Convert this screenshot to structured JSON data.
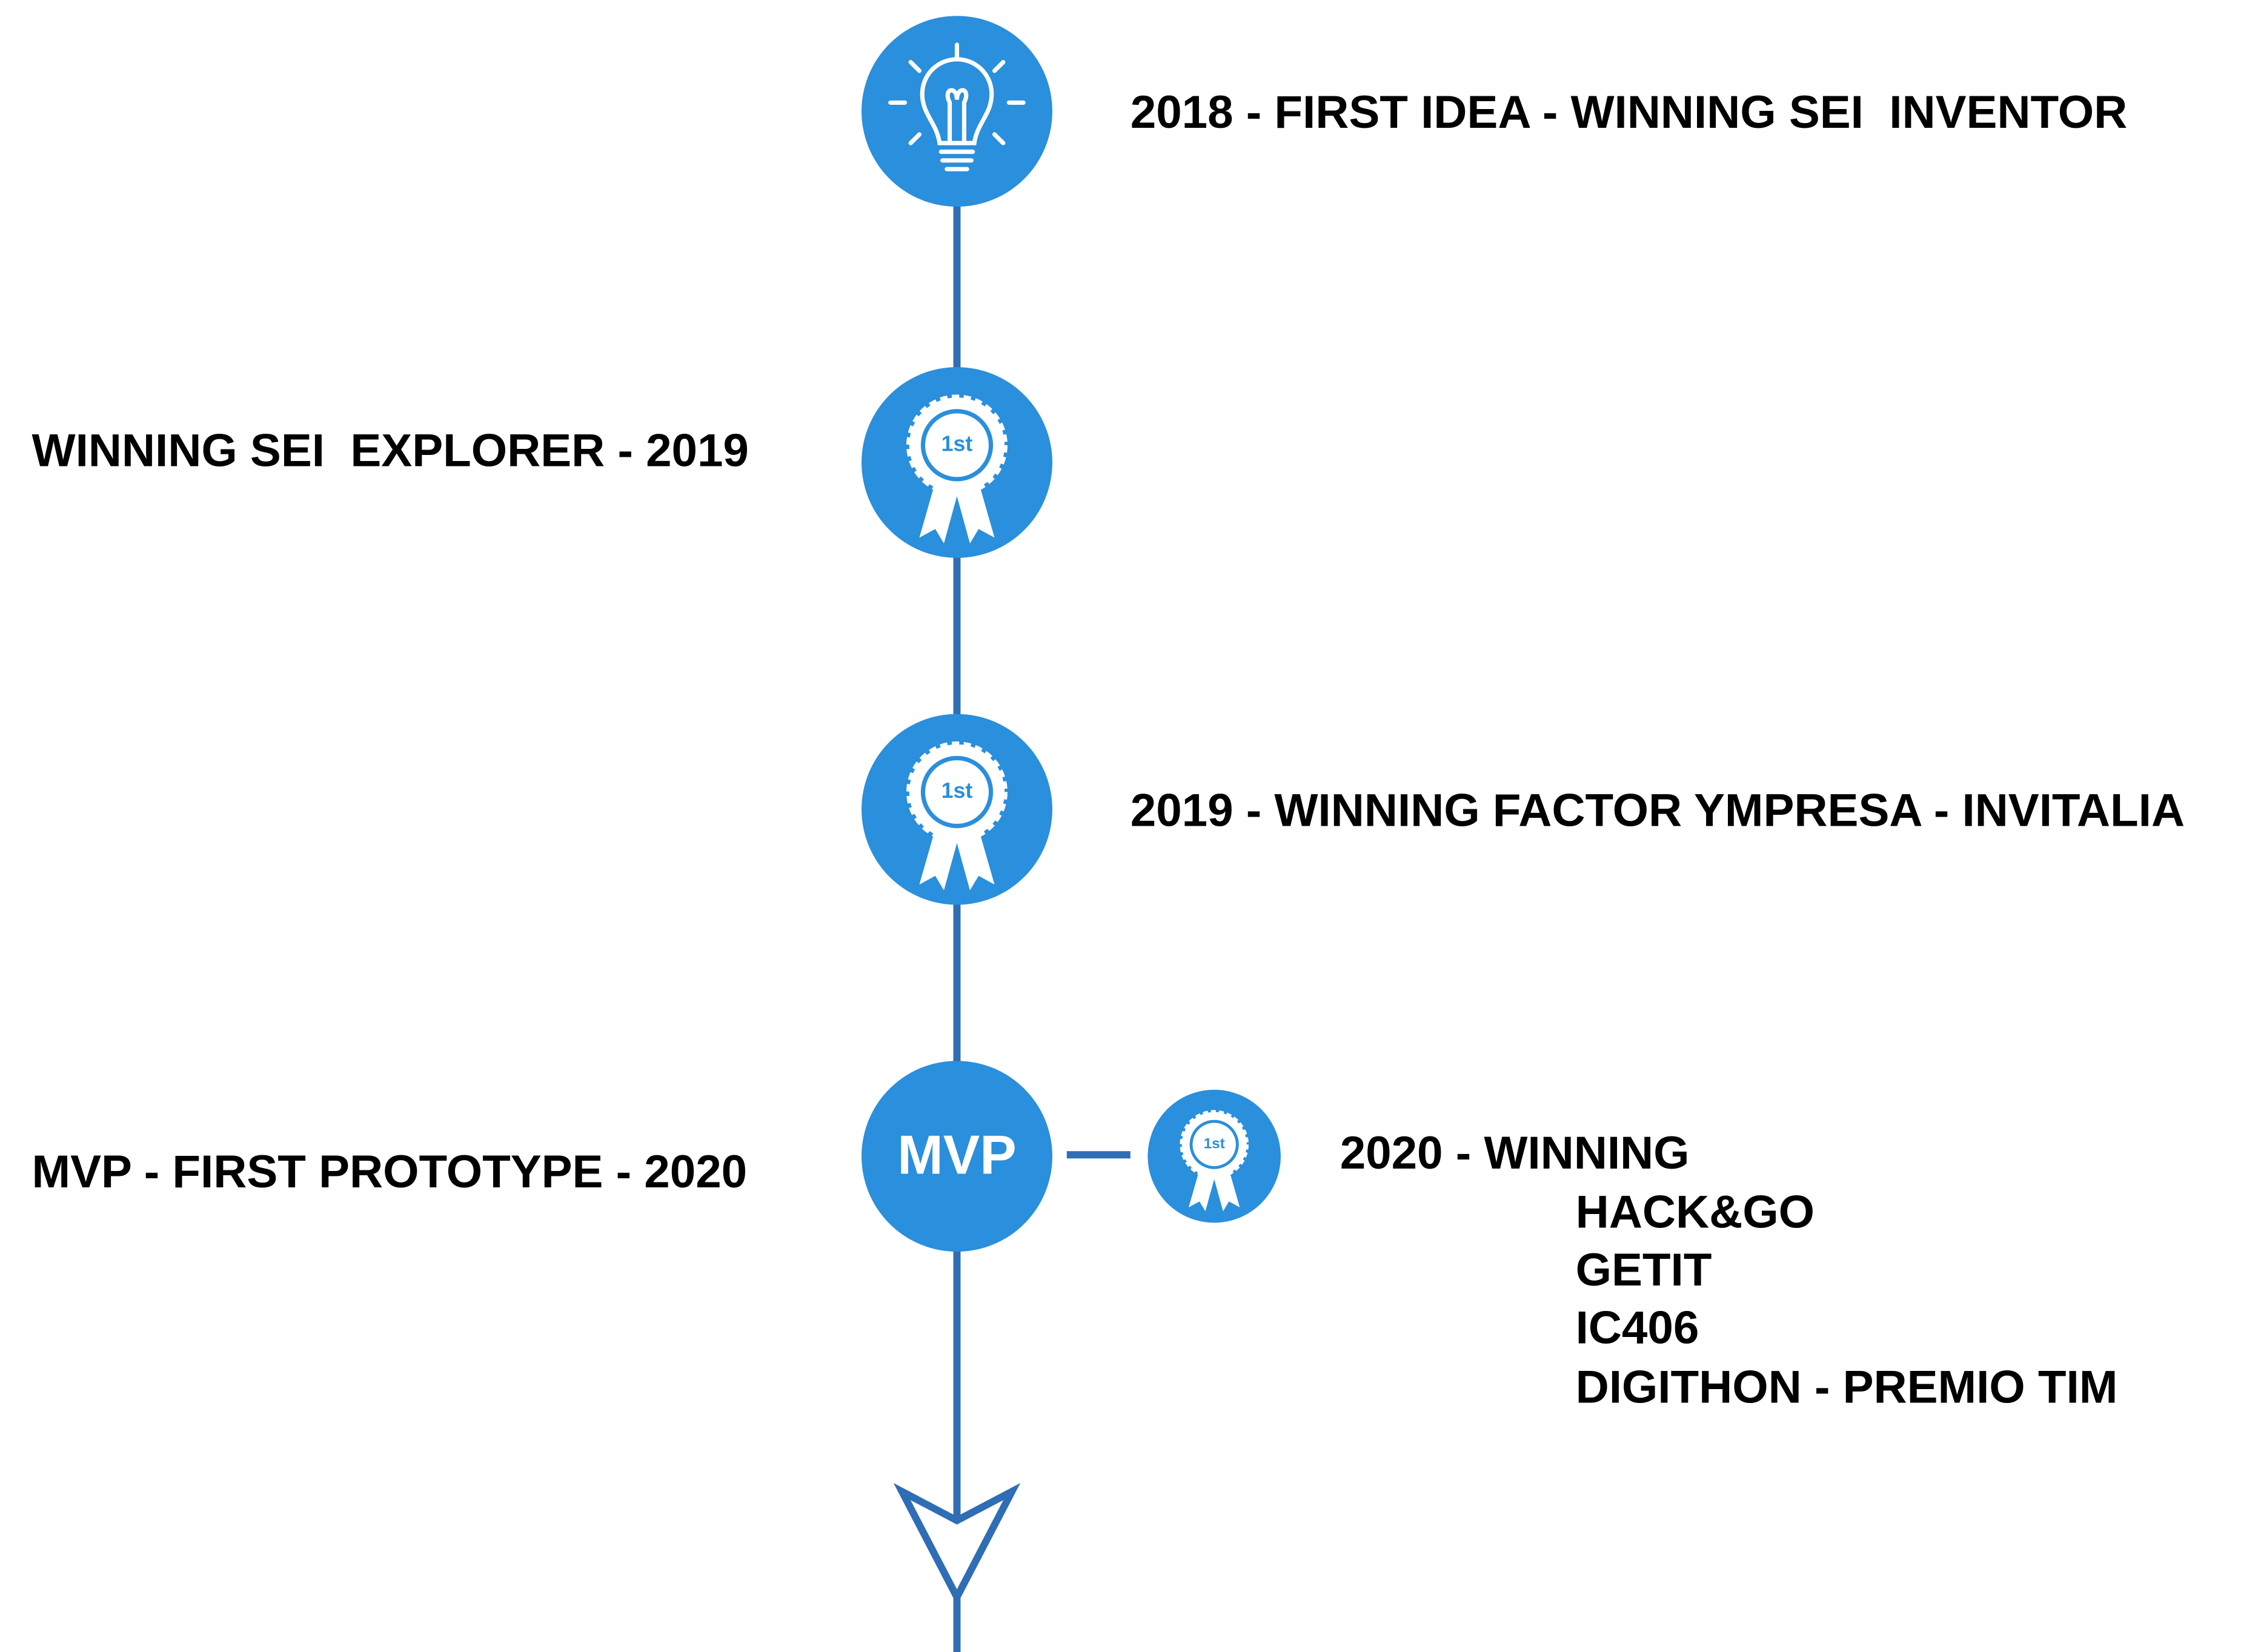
{
  "timeline": {
    "items": [
      {
        "label": "2018 - FIRST IDEA - WINNING SEI  INVENTOR"
      },
      {
        "label": "WINNING SEI  EXPLORER - 2019",
        "badge": "1st"
      },
      {
        "label": "2019 - WINNING FACTOR YMPRESA - INVITALIA",
        "badge": "1st"
      },
      {
        "label": "MVP - FIRST PROTOTYPE - 2020",
        "badge": "MVP"
      }
    ],
    "side": {
      "badge": "1st",
      "title": "2020 - WINNING",
      "list": [
        "HACK&GO",
        "GETIT",
        "IC406",
        "DIGITHON - PREMIO TIM"
      ]
    }
  }
}
